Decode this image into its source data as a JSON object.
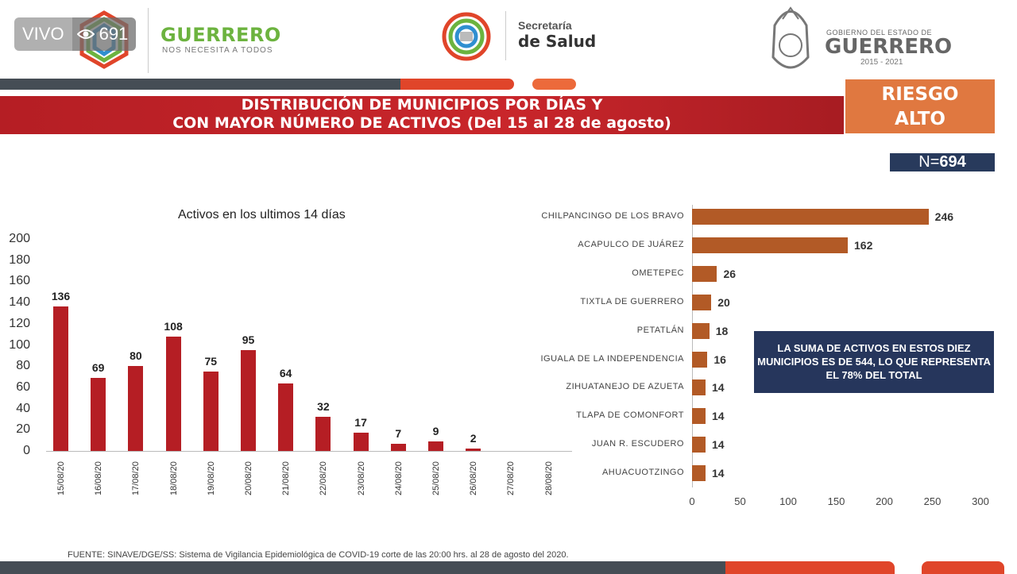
{
  "overlay": {
    "live_label": "VIVO",
    "viewers": "691"
  },
  "header": {
    "guerrero_logo_text": "GUERRERO",
    "guerrero_tagline": "NOS NECESITA A TODOS",
    "salud_line1": "Secretaría",
    "salud_line2": "de Salud",
    "gob_line1": "GOBIERNO DEL ESTADO DE",
    "gob_line2": "GUERRERO",
    "gob_line3": "2015 - 2021"
  },
  "title": {
    "line1": "DISTRIBUCIÓN DE MUNICIPIOS POR DÍAS Y",
    "line2": "CON MAYOR NÚMERO DE ACTIVOS (Del 15 al 28 de agosto)"
  },
  "risk": {
    "line1": "RIESGO",
    "line2": "ALTO"
  },
  "total": {
    "prefix": "N=",
    "value": "694"
  },
  "note": "LA SUMA DE ACTIVOS EN ESTOS DIEZ MUNICIPIOS ES DE 544, LO QUE REPRESENTA EL 78% DEL TOTAL",
  "footer": "FUENTE: SINAVE/DGE/SS: Sistema de Vigilancia Epidemiológica de COVID-19 corte de las 20:00 hrs. al 28 de agosto del 2020.",
  "colors": {
    "bar_red": "#b51e24",
    "bar_brown": "#b25a26",
    "navy": "#26365c",
    "orange": "#e07840"
  },
  "chart_data": [
    {
      "type": "bar",
      "title": "Activos en los ultimos 14 días",
      "categories": [
        "15/08/20",
        "16/08/20",
        "17/08/20",
        "18/08/20",
        "19/08/20",
        "20/08/20",
        "21/08/20",
        "22/08/20",
        "23/08/20",
        "24/08/20",
        "25/08/20",
        "26/08/20",
        "27/08/20",
        "28/08/20"
      ],
      "values": [
        136,
        69,
        80,
        108,
        75,
        95,
        64,
        32,
        17,
        7,
        9,
        2,
        null,
        null
      ],
      "labels": [
        "136",
        "69",
        "80",
        "108",
        "75",
        "95",
        "64",
        "32",
        "17",
        "7",
        "9",
        "2",
        "",
        ""
      ],
      "yticks": [
        0,
        20,
        40,
        60,
        80,
        100,
        120,
        140,
        160,
        180,
        200
      ],
      "ylim": [
        0,
        200
      ],
      "grid": false
    },
    {
      "type": "bar",
      "orientation": "horizontal",
      "categories": [
        "CHILPANCINGO DE LOS BRAVO",
        "ACAPULCO DE JUÁREZ",
        "OMETEPEC",
        "TIXTLA DE GUERRERO",
        "PETATLÁN",
        "IGUALA DE LA INDEPENDENCIA",
        "ZIHUATANEJO DE AZUETA",
        "TLAPA DE COMONFORT",
        "JUAN R. ESCUDERO",
        "AHUACUOTZINGO"
      ],
      "values": [
        246,
        162,
        26,
        20,
        18,
        16,
        14,
        14,
        14,
        14
      ],
      "xticks": [
        0,
        50,
        100,
        150,
        200,
        250,
        300
      ],
      "xlim": [
        0,
        300
      ],
      "grid": false
    }
  ]
}
